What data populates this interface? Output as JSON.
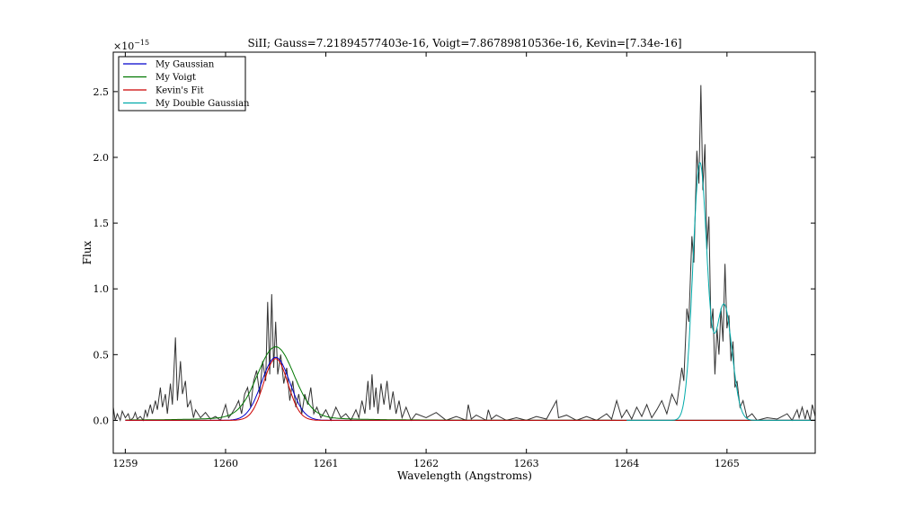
{
  "chart_data": {
    "type": "line",
    "title": "SiII; Gauss=7.21894577403e-16, Voigt=7.86789810536e-16, Kevin=[7.34e-16]",
    "xlabel": "Wavelength (Angstroms)",
    "ylabel": "Flux",
    "y_scale_label": "×10^−15",
    "y_scale_base": "×10",
    "y_scale_exp": "−15",
    "xlim": [
      1258.88,
      1265.88
    ],
    "ylim": [
      -0.25,
      2.8
    ],
    "x_ticks": [
      1259,
      1260,
      1261,
      1262,
      1263,
      1264,
      1265
    ],
    "x_tick_labels": [
      "1259",
      "1260",
      "1261",
      "1262",
      "1263",
      "1264",
      "1265"
    ],
    "y_ticks": [
      0.0,
      0.5,
      1.0,
      1.5,
      2.0,
      2.5
    ],
    "y_tick_labels": [
      "0.0",
      "0.5",
      "1.0",
      "1.5",
      "2.0",
      "2.5"
    ],
    "legend_position": "top-left",
    "observed_color": "#333333",
    "observed": [
      [
        1258.88,
        0.1
      ],
      [
        1258.9,
        0.0
      ],
      [
        1258.92,
        0.05
      ],
      [
        1258.95,
        0.0
      ],
      [
        1258.97,
        0.07
      ],
      [
        1259.0,
        0.02
      ],
      [
        1259.03,
        0.05
      ],
      [
        1259.05,
        0.0
      ],
      [
        1259.08,
        0.02
      ],
      [
        1259.1,
        0.06
      ],
      [
        1259.12,
        0.01
      ],
      [
        1259.15,
        0.03
      ],
      [
        1259.18,
        0.0
      ],
      [
        1259.2,
        0.08
      ],
      [
        1259.22,
        0.03
      ],
      [
        1259.25,
        0.12
      ],
      [
        1259.27,
        0.05
      ],
      [
        1259.3,
        0.15
      ],
      [
        1259.32,
        0.08
      ],
      [
        1259.35,
        0.25
      ],
      [
        1259.37,
        0.1
      ],
      [
        1259.4,
        0.2
      ],
      [
        1259.42,
        0.05
      ],
      [
        1259.45,
        0.28
      ],
      [
        1259.47,
        0.12
      ],
      [
        1259.5,
        0.63
      ],
      [
        1259.52,
        0.15
      ],
      [
        1259.55,
        0.45
      ],
      [
        1259.57,
        0.2
      ],
      [
        1259.6,
        0.3
      ],
      [
        1259.62,
        0.1
      ],
      [
        1259.65,
        0.15
      ],
      [
        1259.68,
        0.02
      ],
      [
        1259.7,
        0.08
      ],
      [
        1259.75,
        0.02
      ],
      [
        1259.8,
        0.06
      ],
      [
        1259.85,
        0.01
      ],
      [
        1259.9,
        0.03
      ],
      [
        1259.95,
        0.0
      ],
      [
        1260.0,
        0.12
      ],
      [
        1260.03,
        0.02
      ],
      [
        1260.06,
        0.05
      ],
      [
        1260.1,
        0.1
      ],
      [
        1260.13,
        0.15
      ],
      [
        1260.16,
        0.05
      ],
      [
        1260.19,
        0.2
      ],
      [
        1260.22,
        0.25
      ],
      [
        1260.25,
        0.1
      ],
      [
        1260.28,
        0.3
      ],
      [
        1260.31,
        0.38
      ],
      [
        1260.34,
        0.2
      ],
      [
        1260.37,
        0.45
      ],
      [
        1260.4,
        0.3
      ],
      [
        1260.42,
        0.9
      ],
      [
        1260.44,
        0.35
      ],
      [
        1260.46,
        0.96
      ],
      [
        1260.48,
        0.4
      ],
      [
        1260.5,
        0.75
      ],
      [
        1260.52,
        0.35
      ],
      [
        1260.55,
        0.5
      ],
      [
        1260.58,
        0.28
      ],
      [
        1260.61,
        0.4
      ],
      [
        1260.64,
        0.15
      ],
      [
        1260.67,
        0.3
      ],
      [
        1260.7,
        0.1
      ],
      [
        1260.73,
        0.2
      ],
      [
        1260.76,
        0.05
      ],
      [
        1260.79,
        0.2
      ],
      [
        1260.82,
        0.12
      ],
      [
        1260.85,
        0.25
      ],
      [
        1260.88,
        0.05
      ],
      [
        1260.91,
        0.1
      ],
      [
        1260.95,
        0.02
      ],
      [
        1261.0,
        0.08
      ],
      [
        1261.05,
        0.0
      ],
      [
        1261.1,
        0.1
      ],
      [
        1261.15,
        0.02
      ],
      [
        1261.2,
        0.05
      ],
      [
        1261.25,
        0.0
      ],
      [
        1261.3,
        0.08
      ],
      [
        1261.33,
        0.02
      ],
      [
        1261.36,
        0.15
      ],
      [
        1261.39,
        0.05
      ],
      [
        1261.42,
        0.3
      ],
      [
        1261.44,
        0.08
      ],
      [
        1261.46,
        0.35
      ],
      [
        1261.48,
        0.1
      ],
      [
        1261.5,
        0.25
      ],
      [
        1261.52,
        0.05
      ],
      [
        1261.55,
        0.28
      ],
      [
        1261.58,
        0.12
      ],
      [
        1261.61,
        0.3
      ],
      [
        1261.64,
        0.08
      ],
      [
        1261.67,
        0.22
      ],
      [
        1261.7,
        0.05
      ],
      [
        1261.73,
        0.15
      ],
      [
        1261.76,
        0.02
      ],
      [
        1261.8,
        0.1
      ],
      [
        1261.85,
        0.0
      ],
      [
        1261.9,
        0.05
      ],
      [
        1262.0,
        0.02
      ],
      [
        1262.1,
        0.06
      ],
      [
        1262.2,
        0.0
      ],
      [
        1262.3,
        0.03
      ],
      [
        1262.4,
        0.0
      ],
      [
        1262.42,
        0.12
      ],
      [
        1262.45,
        0.01
      ],
      [
        1262.5,
        0.04
      ],
      [
        1262.6,
        0.0
      ],
      [
        1262.62,
        0.08
      ],
      [
        1262.65,
        0.01
      ],
      [
        1262.7,
        0.04
      ],
      [
        1262.8,
        0.0
      ],
      [
        1262.9,
        0.02
      ],
      [
        1263.0,
        0.0
      ],
      [
        1263.1,
        0.03
      ],
      [
        1263.2,
        0.01
      ],
      [
        1263.3,
        0.15
      ],
      [
        1263.32,
        0.02
      ],
      [
        1263.4,
        0.04
      ],
      [
        1263.5,
        0.0
      ],
      [
        1263.6,
        0.03
      ],
      [
        1263.7,
        0.0
      ],
      [
        1263.8,
        0.05
      ],
      [
        1263.85,
        0.01
      ],
      [
        1263.9,
        0.15
      ],
      [
        1263.95,
        0.02
      ],
      [
        1264.0,
        0.08
      ],
      [
        1264.05,
        0.01
      ],
      [
        1264.1,
        0.1
      ],
      [
        1264.15,
        0.03
      ],
      [
        1264.2,
        0.12
      ],
      [
        1264.25,
        0.02
      ],
      [
        1264.3,
        0.08
      ],
      [
        1264.35,
        0.15
      ],
      [
        1264.4,
        0.05
      ],
      [
        1264.45,
        0.2
      ],
      [
        1264.5,
        0.12
      ],
      [
        1264.55,
        0.4
      ],
      [
        1264.57,
        0.3
      ],
      [
        1264.6,
        0.85
      ],
      [
        1264.62,
        0.75
      ],
      [
        1264.65,
        1.4
      ],
      [
        1264.67,
        1.2
      ],
      [
        1264.7,
        2.05
      ],
      [
        1264.72,
        1.8
      ],
      [
        1264.74,
        2.55
      ],
      [
        1264.76,
        1.75
      ],
      [
        1264.78,
        2.1
      ],
      [
        1264.8,
        1.3
      ],
      [
        1264.82,
        1.55
      ],
      [
        1264.84,
        0.7
      ],
      [
        1264.86,
        0.85
      ],
      [
        1264.88,
        0.35
      ],
      [
        1264.9,
        0.7
      ],
      [
        1264.92,
        0.5
      ],
      [
        1264.94,
        0.85
      ],
      [
        1264.96,
        0.6
      ],
      [
        1264.98,
        1.19
      ],
      [
        1265.0,
        0.7
      ],
      [
        1265.02,
        0.8
      ],
      [
        1265.04,
        0.45
      ],
      [
        1265.06,
        0.6
      ],
      [
        1265.08,
        0.25
      ],
      [
        1265.1,
        0.3
      ],
      [
        1265.13,
        0.1
      ],
      [
        1265.16,
        0.15
      ],
      [
        1265.2,
        0.02
      ],
      [
        1265.25,
        0.05
      ],
      [
        1265.3,
        0.0
      ],
      [
        1265.4,
        0.02
      ],
      [
        1265.5,
        0.01
      ],
      [
        1265.6,
        0.05
      ],
      [
        1265.65,
        0.0
      ],
      [
        1265.7,
        0.08
      ],
      [
        1265.72,
        0.02
      ],
      [
        1265.75,
        0.1
      ],
      [
        1265.78,
        0.01
      ],
      [
        1265.8,
        0.08
      ],
      [
        1265.83,
        0.0
      ],
      [
        1265.85,
        0.12
      ],
      [
        1265.88,
        0.03
      ]
    ],
    "series": [
      {
        "name": "My Gaussian",
        "color": "#0000cc",
        "x_start": 1259.0,
        "x_end": 1265.88,
        "components": [
          {
            "amplitude": 0.48,
            "center": 1260.5,
            "sigma": 0.14
          }
        ]
      },
      {
        "name": "My Voigt",
        "color": "#007700",
        "x_start": 1259.0,
        "x_end": 1265.88,
        "components": [
          {
            "amplitude": 0.5,
            "center": 1260.5,
            "sigma": 0.18
          }
        ],
        "wing_amplitude": 0.06,
        "wing_width": 0.35
      },
      {
        "name": "Kevin's Fit",
        "color": "#cc0000",
        "x_start": 1259.0,
        "x_end": 1265.88,
        "components": [
          {
            "amplitude": 0.47,
            "center": 1260.5,
            "sigma": 0.12
          }
        ]
      },
      {
        "name": "My Double Gaussian",
        "color": "#00aaaa",
        "x_start": 1264.0,
        "x_end": 1265.9,
        "components": [
          {
            "amplitude": 1.95,
            "center": 1264.73,
            "sigma": 0.07
          },
          {
            "amplitude": 0.88,
            "center": 1264.97,
            "sigma": 0.08
          }
        ]
      }
    ]
  }
}
